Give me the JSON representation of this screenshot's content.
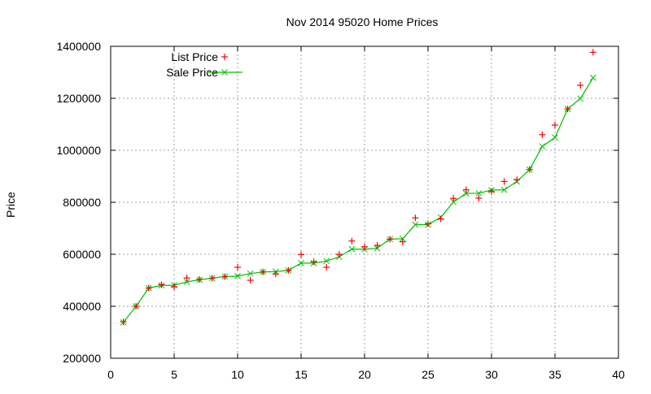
{
  "chart_data": {
    "type": "line",
    "title": "Nov 2014 95020 Home Prices",
    "xlabel": "",
    "ylabel": "Price",
    "xlim": [
      0,
      40
    ],
    "ylim": [
      200000,
      1400000
    ],
    "x_ticks": [
      0,
      5,
      10,
      15,
      20,
      25,
      30,
      35,
      40
    ],
    "y_ticks": [
      200000,
      400000,
      600000,
      800000,
      1000000,
      1200000,
      1400000
    ],
    "x_tick_labels": [
      "0",
      "5",
      "10",
      "15",
      "20",
      "25",
      "30",
      "35",
      "40"
    ],
    "y_tick_labels": [
      "200000",
      "400000",
      "600000",
      "800000",
      "1000000",
      "1200000",
      "1400000"
    ],
    "grid": true,
    "legend_position": "top-left",
    "x": [
      1,
      2,
      3,
      4,
      5,
      6,
      7,
      8,
      9,
      10,
      11,
      12,
      13,
      14,
      15,
      16,
      17,
      18,
      19,
      20,
      21,
      22,
      23,
      24,
      25,
      26,
      27,
      28,
      29,
      30,
      31,
      32,
      33,
      34,
      35,
      36,
      37,
      38
    ],
    "series": [
      {
        "name": "List Price",
        "style": "points",
        "marker": "plus",
        "color": "#ff0000",
        "values": [
          340000,
          400000,
          470000,
          483000,
          475000,
          509000,
          503000,
          508000,
          514000,
          550000,
          500000,
          532000,
          524000,
          538000,
          599000,
          571000,
          550000,
          600000,
          651000,
          629000,
          634000,
          658000,
          648000,
          740000,
          717000,
          736000,
          815000,
          848000,
          816000,
          841000,
          880000,
          887000,
          926000,
          1060000,
          1097000,
          1159000,
          1250000,
          1377000
        ]
      },
      {
        "name": "Sale Price",
        "style": "linespoints",
        "marker": "x",
        "color": "#00c000",
        "values": [
          338000,
          400000,
          470000,
          480000,
          481000,
          494000,
          502000,
          508000,
          514000,
          516000,
          526000,
          532000,
          533000,
          538000,
          566000,
          566000,
          574000,
          590000,
          620000,
          619000,
          623000,
          658000,
          660000,
          714000,
          714000,
          742000,
          801000,
          834000,
          835000,
          847000,
          848000,
          880000,
          926000,
          1015000,
          1049000,
          1159000,
          1199000,
          1279000
        ]
      }
    ]
  },
  "colors": {
    "list_price": "#ff0000",
    "sale_price": "#00c000",
    "grid": "#a0a0a0",
    "frame": "#000000"
  }
}
